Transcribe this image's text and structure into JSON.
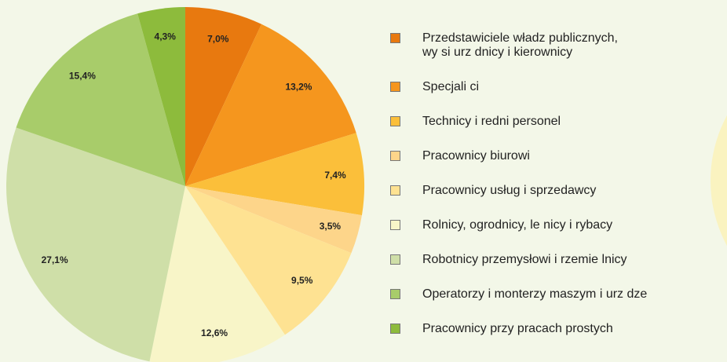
{
  "chart_data": {
    "type": "pie",
    "categories": [
      "Przedstawiciele władz publicznych,\nwy si urz dnicy i kierownicy",
      "Specjali ci",
      "Technicy i redni personel",
      "Pracownicy biurowi",
      "Pracownicy usług i sprzedawcy",
      "Rolnicy, ogrodnicy, le nicy i rybacy",
      "Robotnicy przemysłowi i rzemie lnicy",
      "Operatorzy i monterzy maszym i urz dze",
      "Pracownicy przy pracach prostych"
    ],
    "values": [
      7.0,
      13.2,
      7.4,
      3.5,
      9.5,
      12.6,
      27.1,
      15.4,
      4.3
    ],
    "value_labels": [
      "7,0%",
      "13,2%",
      "7,4%",
      "3,5%",
      "9,5%",
      "12,6%",
      "27,1%",
      "15,4%",
      "4,3%"
    ],
    "colors": [
      "#e8790f",
      "#f5961e",
      "#fbbf3a",
      "#fdd58a",
      "#fee292",
      "#f8f5c8",
      "#cfdfa8",
      "#a8cc6a",
      "#8dbb3c"
    ],
    "legend": "right"
  }
}
